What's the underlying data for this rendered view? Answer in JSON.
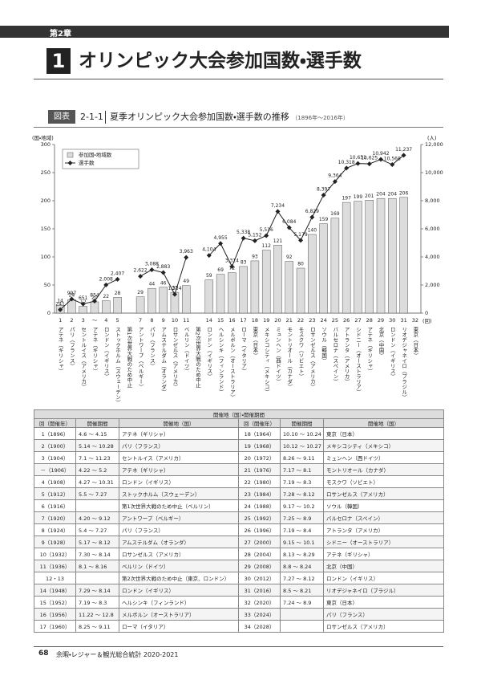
{
  "header": {
    "chapter": "第2章"
  },
  "title": {
    "number": "1",
    "text": "オリンピック大会参加国数・選手数"
  },
  "figure": {
    "label": "図表",
    "number": "2-1-1",
    "title": "夏季オリンピック大会参加国数・選手数の推移",
    "period": "（1896年～2016年）"
  },
  "chart_data": {
    "type": "bar_line",
    "ylabel": "(国・地域)",
    "y2label": "(人)",
    "xlabel": "(回)",
    "categories": [
      "1",
      "2",
      "3",
      "～",
      "4",
      "5",
      null,
      "7",
      "8",
      "9",
      "10",
      "11",
      null,
      "14",
      "15",
      "16",
      "17",
      "18",
      "19",
      "20",
      "21",
      "22",
      "23",
      "24",
      "25",
      "26",
      "27",
      "28",
      "29",
      "30",
      "31",
      "32"
    ],
    "hosts": [
      "アテネ（ギリシャ）",
      "パリ（フランス）",
      "セントルイス（アメリカ）",
      "アテネ（ギリシャ）",
      "ロンドン（イギリス）",
      "ストックホルム（スウェーデン）",
      "第1次世界大戦のため中止",
      "アントワープ（ベルギー）",
      "パリ（フランス）",
      "アムステルダム（オランダ）",
      "ロサンゼルス（アメリカ）",
      "ベルリン（ドイツ）",
      "第2次世界大戦のため中止",
      "ロンドン（イギリス）",
      "ヘルシンキ（フィンランド）",
      "メルボルン（オーストラリア）",
      "ローマ（イタリア）",
      "東京（日本）",
      "メキシコシティ（メキシコ）",
      "ミュンヘン（西ドイツ）",
      "モントリオール（カナダ）",
      "モスクワ（ソビエト）",
      "ロサンゼルス（アメリカ）",
      "ソウル（韓国）",
      "バルセロナ（スペイン）",
      "アトランタ（アメリカ）",
      "シドニー（オーストラリア）",
      "アテネ（ギリシャ）",
      "北京（中国）",
      "ロンドン（イギリス）",
      "リオデジャネイロ（ブラジル）",
      "東京（日本）"
    ],
    "series": [
      {
        "name": "参加国・地域数",
        "color": "#dcdcdc",
        "values": [
          14,
          24,
          12,
          20,
          22,
          28,
          null,
          29,
          44,
          46,
          37,
          49,
          null,
          59,
          69,
          72,
          83,
          93,
          112,
          121,
          92,
          80,
          140,
          159,
          169,
          197,
          199,
          201,
          204,
          204,
          206,
          null
        ]
      },
      {
        "name": "選手数",
        "color": "#222222",
        "axis": "y2",
        "values": [
          241,
          997,
          651,
          854,
          2008,
          2407,
          null,
          2622,
          3088,
          2883,
          1334,
          3963,
          null,
          4104,
          4955,
          3314,
          5338,
          5152,
          5516,
          7234,
          6084,
          5179,
          6829,
          8397,
          9364,
          10318,
          10651,
          10625,
          10942,
          10568,
          11237,
          null
        ],
        "value_labels": [
          "241",
          "997",
          "651",
          "854",
          "2,008",
          "2,407",
          null,
          "2,622",
          "3,088",
          "2,883",
          "1,334",
          "3,963",
          null,
          "4,104",
          "4,955",
          "3,314",
          "5,338",
          "5,152",
          "5,516",
          "7,234",
          "6,084",
          "5,179",
          "6,829",
          "8,397",
          "9,364",
          "10,318",
          "10,651",
          "10,625",
          "10,942",
          "10,568",
          "11,237",
          null
        ]
      }
    ],
    "ylim": [
      0,
      300
    ],
    "yticks": [
      0,
      50,
      100,
      150,
      200,
      250,
      300
    ],
    "y2lim": [
      0,
      12000
    ],
    "y2ticks": [
      0,
      {
        "value": 2000,
        "label": "2,000"
      },
      {
        "value": 4000,
        "label": "4,000"
      },
      {
        "value": 6000,
        "label": "6,000"
      },
      {
        "value": 8000,
        "label": "8,000"
      },
      {
        "value": 10000,
        "label": "10,000"
      },
      {
        "value": 12000,
        "label": "12,000"
      }
    ],
    "grid": false,
    "legend": "upper left"
  },
  "table": {
    "group_header": "開催地（国）・開催期間",
    "columns": [
      "回（開催年）",
      "開催期間",
      "開催地（国）"
    ],
    "rows": [
      [
        "1（1896）",
        "4.6 ～ 4.15",
        "アテネ（ギリシャ）",
        "18（1964）",
        "10.10 ～ 10.24",
        "東京（日本）"
      ],
      [
        "2（1900）",
        "5.14 ～ 10.28",
        "パリ（フランス）",
        "19（1968）",
        "10.12 ～ 10.27",
        "メキシコシティ（メキシコ）"
      ],
      [
        "3（1904）",
        "7.1 ～ 11.23",
        "セントルイス（アメリカ）",
        "20（1972）",
        "8.26 ～ 9.11",
        "ミュンヘン（西ドイツ）"
      ],
      [
        "－（1906）",
        "4.22 ～ 5.2",
        "アテネ（ギリシャ）",
        "21（1976）",
        "7.17 ～ 8.1",
        "モントリオール（カナダ）"
      ],
      [
        "4（1908）",
        "4.27 ～ 10.31",
        "ロンドン（イギリス）",
        "22（1980）",
        "7.19 ～ 8.3",
        "モスクワ（ソビエト）"
      ],
      [
        "5（1912）",
        "5.5 ～ 7.27",
        "ストックホルム（スウェーデン）",
        "23（1984）",
        "7.28 ～ 8.12",
        "ロサンゼルス（アメリカ）"
      ],
      [
        "6（1916）",
        null,
        "第1次世界大戦のため中止（ベルリン）",
        "24（1988）",
        "9.17 ～ 10.2",
        "ソウル（韓国）"
      ],
      [
        "7（1920）",
        "4.20 ～ 9.12",
        "アントワープ（ベルギー）",
        "25（1992）",
        "7.25 ～ 8.9",
        "バルセロナ（スペイン）"
      ],
      [
        "8（1924）",
        "5.4 ～ 7.27",
        "パリ（フランス）",
        "26（1996）",
        "7.19 ～ 8.4",
        "アトランタ（アメリカ）"
      ],
      [
        "9（1928）",
        "5.17 ～ 8.12",
        "アムステルダム（オランダ）",
        "27（2000）",
        "9.15 ～ 10.1",
        "シドニー（オーストラリア）"
      ],
      [
        "10（1932）",
        "7.30 ～ 8.14",
        "ロサンゼルス（アメリカ）",
        "28（2004）",
        "8.13 ～ 8.29",
        "アテネ（ギリシャ）"
      ],
      [
        "11（1936）",
        "8.1 ～ 8.16",
        "ベルリン（ドイツ）",
        "29（2008）",
        "8.8 ～ 8.24",
        "北京（中国）"
      ],
      [
        "12・13",
        null,
        "第2次世界大戦のため中止（東京、ロンドン）",
        "30（2012）",
        "7.27 ～ 8.12",
        "ロンドン（イギリス）"
      ],
      [
        "14（1948）",
        "7.29 ～ 8.14",
        "ロンドン（イギリス）",
        "31（2016）",
        "8.5 ～ 8.21",
        "リオデジャネイロ（ブラジル）"
      ],
      [
        "15（1952）",
        "7.19 ～ 8.3",
        "ヘルシンキ（フィンランド）",
        "32（2020）",
        "7.24 ～ 8.9",
        "東京（日本）"
      ],
      [
        "16（1956）",
        "11.22 ～ 12.8",
        "メルボルン（オーストラリア）",
        "33（2024）",
        null,
        "パリ（フランス）"
      ],
      [
        "17（1960）",
        "8.25 ～ 9.11",
        "ローマ（イタリア）",
        "34（2028）",
        null,
        "ロサンゼルス（アメリカ）"
      ]
    ]
  },
  "footer": {
    "page": "68",
    "publication": "余暇・レジャー＆観光総合統計 2020-2021"
  }
}
